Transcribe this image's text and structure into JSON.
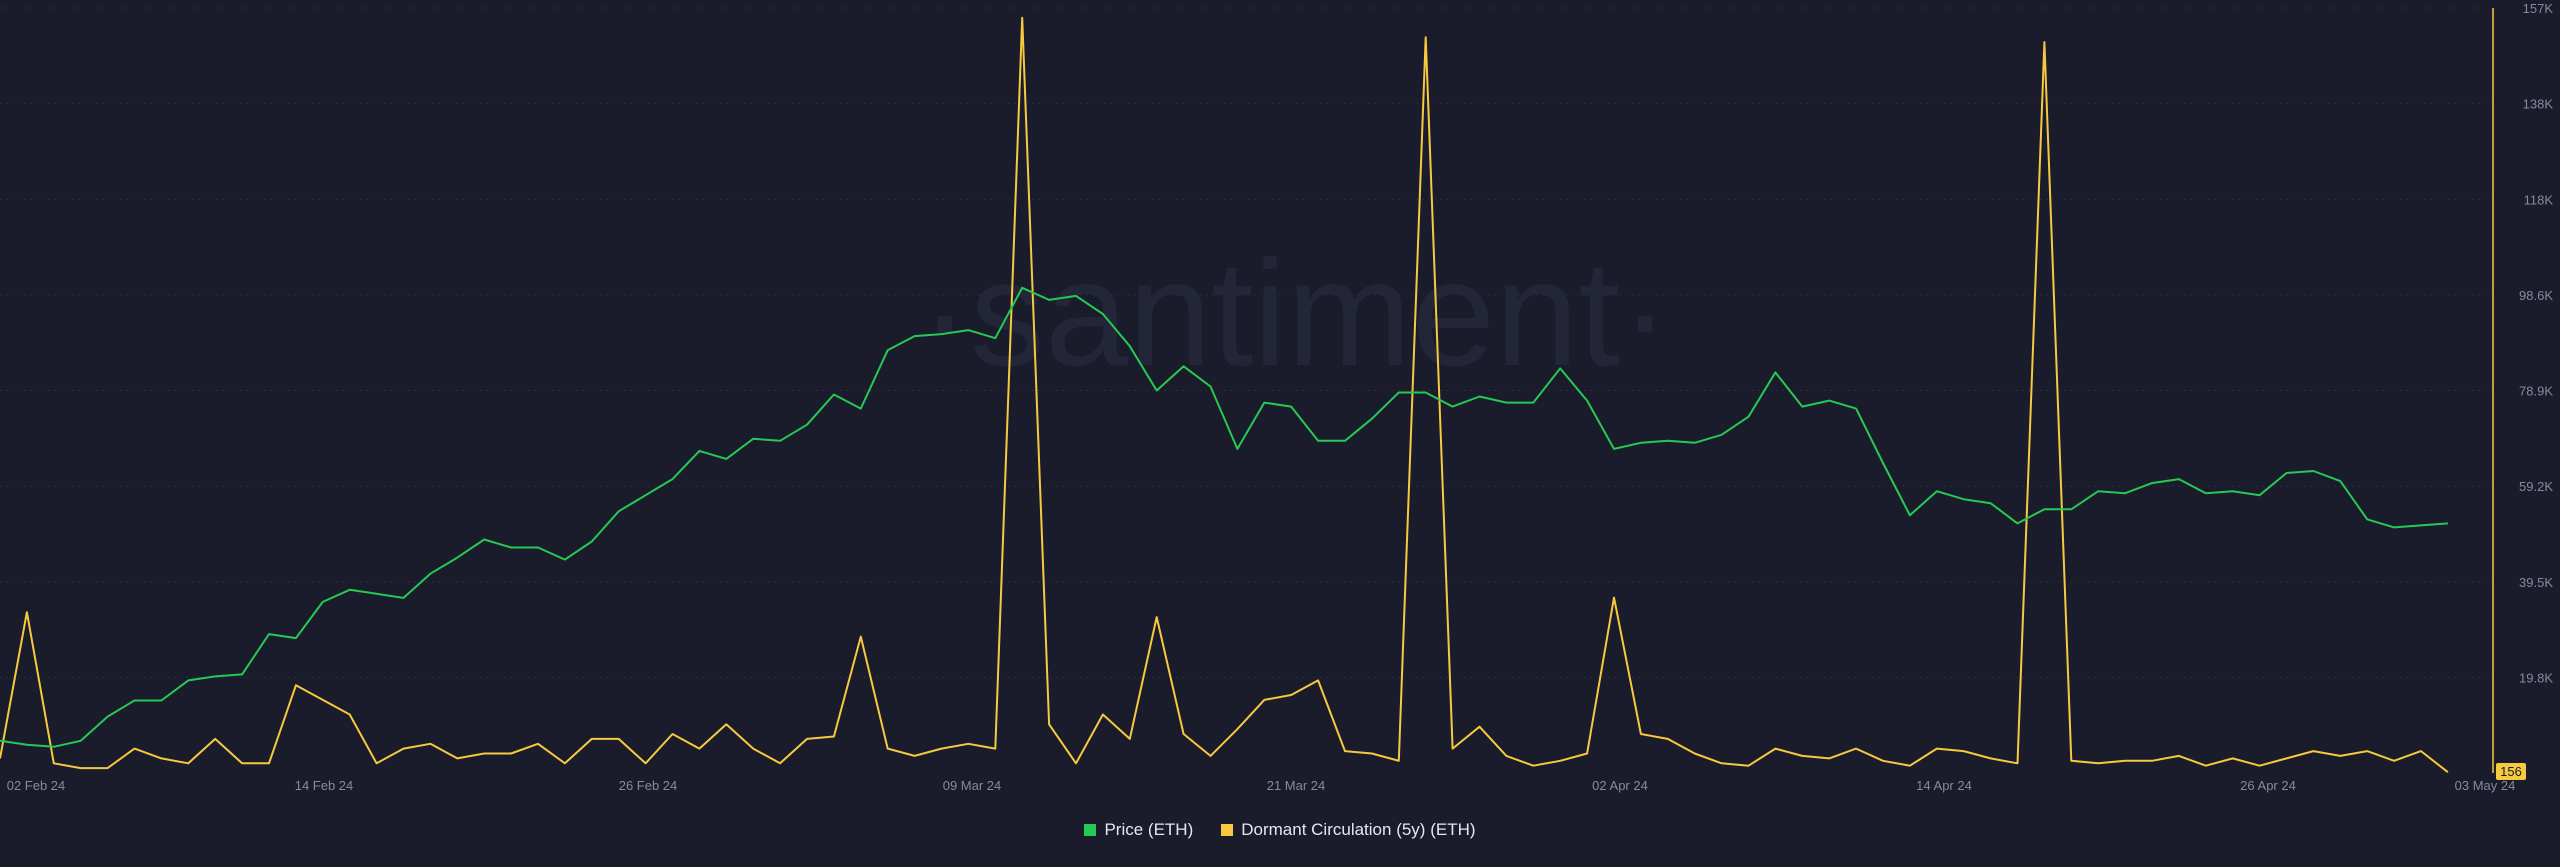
{
  "watermark": "·santiment·",
  "colors": {
    "background": "#1a1c2b",
    "price": "#26c953",
    "dormant": "#f7c93e",
    "grid": "#2a2d3d",
    "tick_text": "#868a9e",
    "last_value_bg": "#f7c93e"
  },
  "legend": {
    "price_label": "Price (ETH)",
    "dormant_label": "Dormant Circulation (5y) (ETH)"
  },
  "last_value_badge": "156",
  "chart_data": {
    "type": "line",
    "x_ticks": [
      "02 Feb 24",
      "14 Feb 24",
      "26 Feb 24",
      "09 Mar 24",
      "21 Mar 24",
      "02 Apr 24",
      "14 Apr 24",
      "26 Apr 24",
      "03 May 24"
    ],
    "y_ticks_right": [
      "157K",
      "138K",
      "118K",
      "98.6K",
      "78.9K",
      "59.2K",
      "39.5K",
      "19.8K"
    ],
    "dormant_range": [
      0,
      157000
    ],
    "price_range": [
      2200,
      4100
    ],
    "series": [
      {
        "name": "Price (ETH)",
        "axis": "hidden",
        "values": [
          2280,
          2270,
          2265,
          2280,
          2340,
          2380,
          2380,
          2430,
          2440,
          2445,
          2545,
          2535,
          2625,
          2655,
          2645,
          2635,
          2695,
          2735,
          2780,
          2760,
          2760,
          2730,
          2775,
          2850,
          2890,
          2930,
          3000,
          2980,
          3030,
          3025,
          3065,
          3140,
          3105,
          3250,
          3285,
          3290,
          3300,
          3280,
          3405,
          3375,
          3385,
          3340,
          3260,
          3150,
          3210,
          3160,
          3005,
          3120,
          3110,
          3025,
          3025,
          3080,
          3145,
          3145,
          3110,
          3135,
          3120,
          3120,
          3205,
          3125,
          3005,
          3020,
          3025,
          3020,
          3040,
          3085,
          3195,
          3110,
          3125,
          3105,
          2970,
          2840,
          2900,
          2880,
          2870,
          2820,
          2855,
          2855,
          2900,
          2895,
          2920,
          2930,
          2895,
          2900,
          2890,
          2945,
          2950,
          2925,
          2830,
          2810,
          2815,
          2820
        ]
      },
      {
        "name": "Dormant Circulation (5y) (ETH)",
        "axis": "right",
        "values": [
          3000,
          33000,
          2000,
          1000,
          1000,
          5000,
          3000,
          2000,
          7000,
          2000,
          2000,
          18000,
          15000,
          12000,
          2000,
          5000,
          6000,
          3000,
          4000,
          4000,
          6000,
          2000,
          7000,
          7000,
          2000,
          8000,
          5000,
          10000,
          5000,
          2000,
          7000,
          7500,
          28000,
          5000,
          3500,
          5000,
          6000,
          5000,
          155000,
          10000,
          2000,
          12000,
          7000,
          32000,
          8000,
          3500,
          9000,
          15000,
          16000,
          19000,
          4500,
          4000,
          2500,
          151000,
          5000,
          9500,
          3500,
          1500,
          2500,
          4000,
          36000,
          8000,
          7000,
          4000,
          2000,
          1500,
          5000,
          3500,
          3000,
          5000,
          2500,
          1500,
          5000,
          4500,
          3000,
          2000,
          150000,
          2500,
          2000,
          2500,
          2500,
          3500,
          1500,
          3000,
          1500,
          3000,
          4500,
          3500,
          4500,
          2500,
          4500,
          156
        ]
      }
    ]
  }
}
